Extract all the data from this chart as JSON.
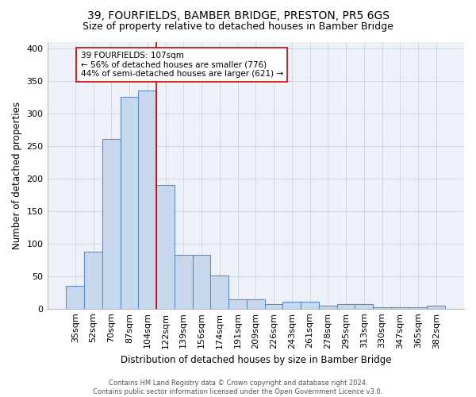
{
  "title": "39, FOURFIELDS, BAMBER BRIDGE, PRESTON, PR5 6GS",
  "subtitle": "Size of property relative to detached houses in Bamber Bridge",
  "xlabel": "Distribution of detached houses by size in Bamber Bridge",
  "ylabel": "Number of detached properties",
  "bar_labels": [
    "35sqm",
    "52sqm",
    "70sqm",
    "87sqm",
    "104sqm",
    "122sqm",
    "139sqm",
    "156sqm",
    "174sqm",
    "191sqm",
    "209sqm",
    "226sqm",
    "243sqm",
    "261sqm",
    "278sqm",
    "295sqm",
    "313sqm",
    "330sqm",
    "347sqm",
    "365sqm",
    "382sqm"
  ],
  "bar_heights": [
    35,
    87,
    260,
    325,
    335,
    190,
    82,
    82,
    51,
    14,
    14,
    7,
    10,
    10,
    5,
    7,
    7,
    2,
    2,
    2,
    4
  ],
  "bar_color": "#c9d9ed",
  "bar_edge_color": "#5b8dc8",
  "red_line_x": 4.5,
  "annotation_line1": "39 FOURFIELDS: 107sqm",
  "annotation_line2": "← 56% of detached houses are smaller (776)",
  "annotation_line3": "44% of semi-detached houses are larger (621) →",
  "annotation_box_color": "#ffffff",
  "annotation_box_edge": "#cc0000",
  "red_line_color": "#cc0000",
  "grid_color": "#d0d8e8",
  "bg_color": "#eef2f8",
  "footer_line1": "Contains HM Land Registry data © Crown copyright and database right 2024.",
  "footer_line2": "Contains public sector information licensed under the Open Government Licence v3.0.",
  "ylim": [
    0,
    410
  ],
  "yticks": [
    0,
    50,
    100,
    150,
    200,
    250,
    300,
    350,
    400
  ]
}
